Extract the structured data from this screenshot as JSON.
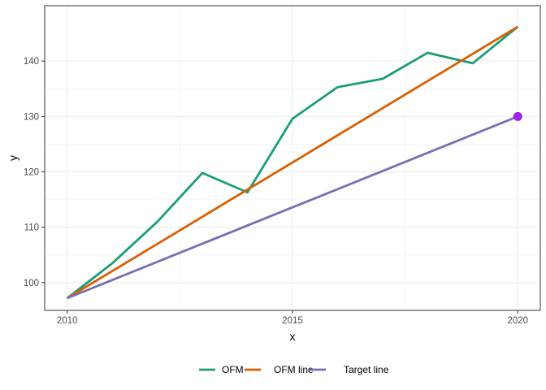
{
  "chart_data": {
    "type": "line",
    "xlabel": "x",
    "ylabel": "y",
    "xlim": [
      2009.5,
      2020.5
    ],
    "ylim": [
      95,
      150
    ],
    "x_ticks": [
      2010,
      2015,
      2020
    ],
    "y_ticks": [
      100,
      110,
      120,
      130,
      140
    ],
    "grid": true,
    "legend_position": "bottom",
    "series": [
      {
        "name": "OFM",
        "color": "#1b9e77",
        "x": [
          2010,
          2011,
          2012,
          2013,
          2014,
          2015,
          2016,
          2017,
          2018,
          2019,
          2020
        ],
        "y": [
          97.2,
          103.5,
          111.0,
          119.8,
          116.3,
          129.6,
          135.3,
          136.8,
          141.5,
          139.6,
          146.2
        ]
      },
      {
        "name": "OFM line",
        "color": "#d95f02",
        "x": [
          2010,
          2020
        ],
        "y": [
          97.2,
          146.2
        ]
      },
      {
        "name": "Target line",
        "color": "#7570b3",
        "x": [
          2010,
          2020
        ],
        "y": [
          97.2,
          130.0
        ]
      }
    ],
    "points": [
      {
        "x": 2020,
        "y": 130.0,
        "color": "#a020f0"
      }
    ]
  }
}
